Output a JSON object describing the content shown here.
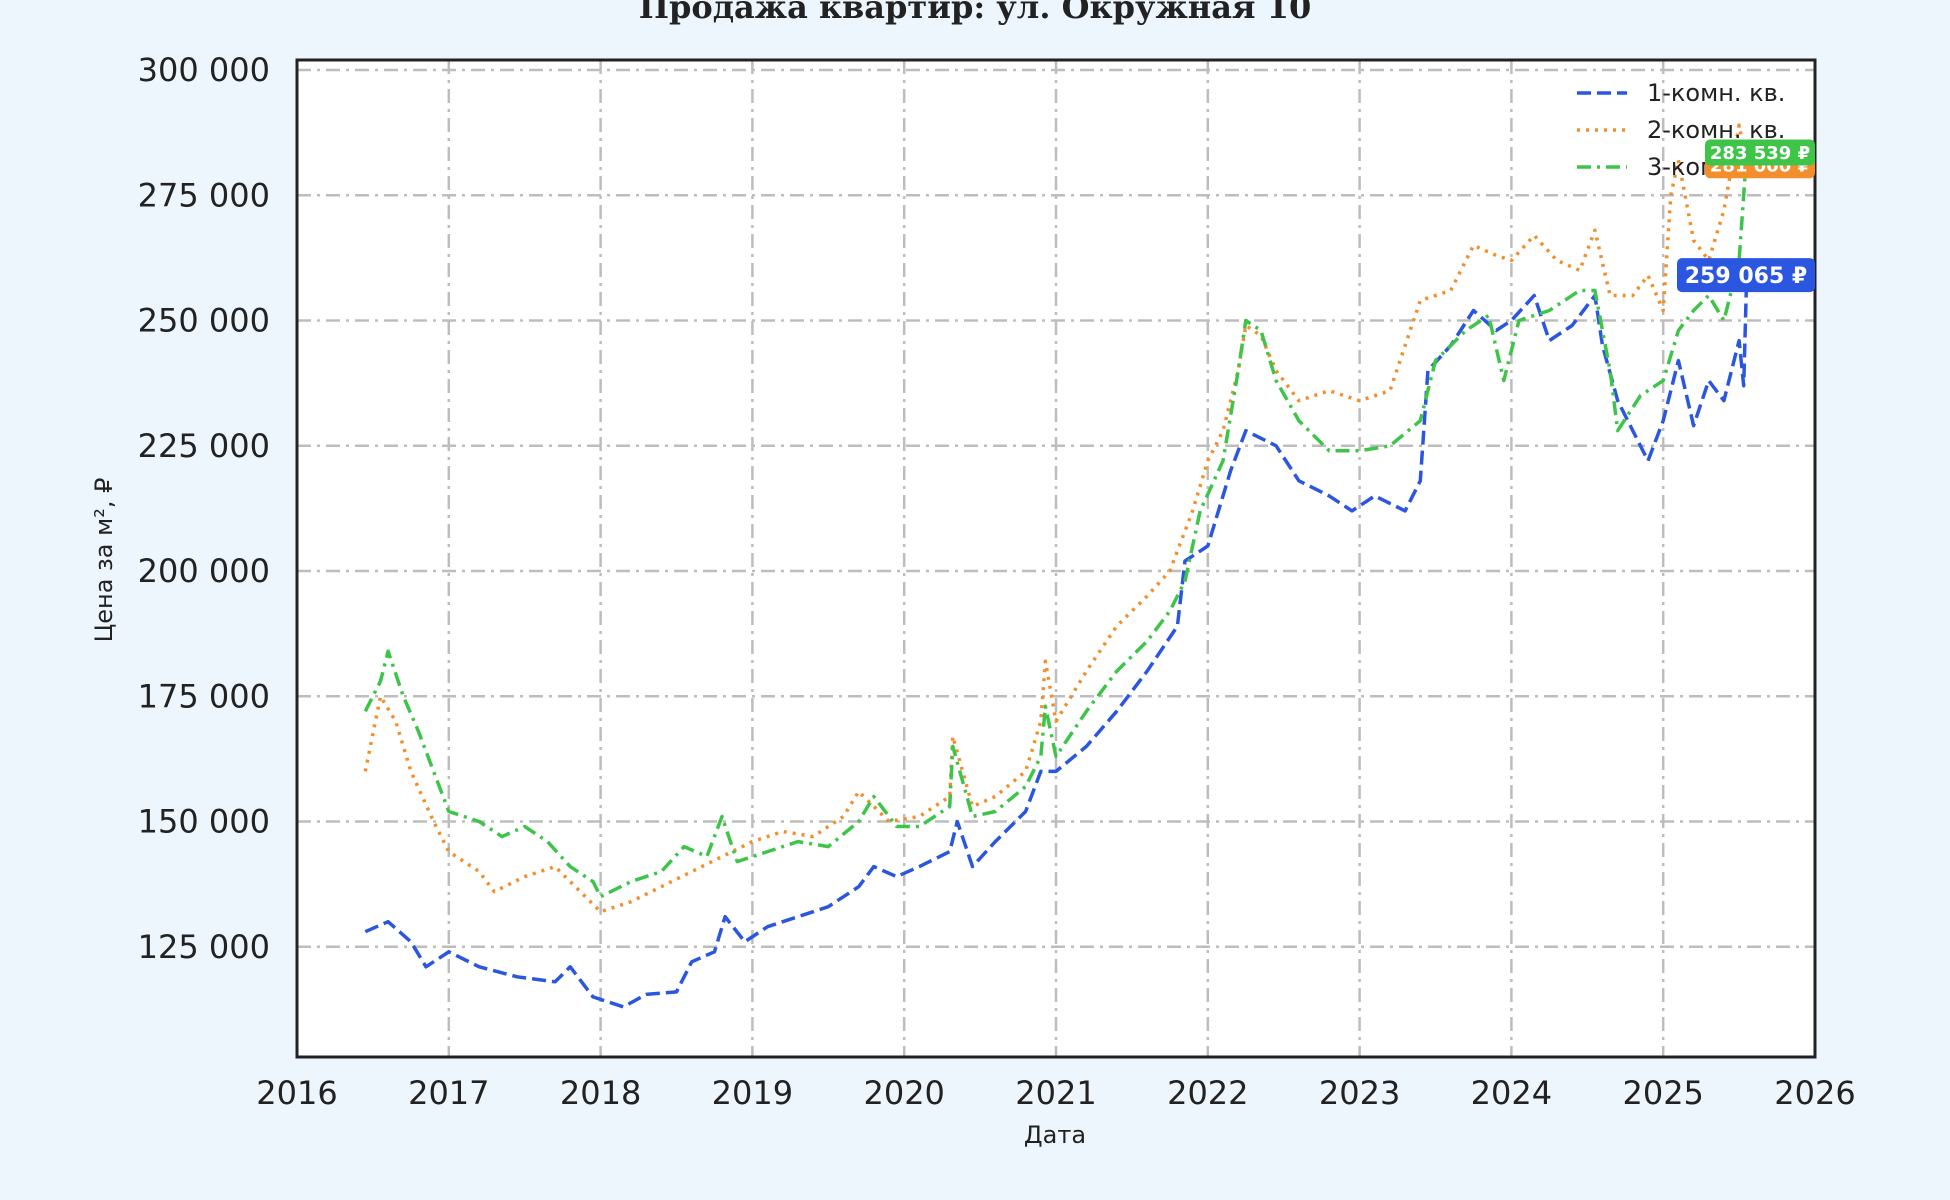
{
  "chart_data": {
    "type": "line",
    "title": "Продажа квартир: ул. Окружная 10",
    "xlabel": "Дата",
    "ylabel": "Цена за м², ₽",
    "xlim": [
      2016.0,
      2026.0
    ],
    "ylim": [
      103000,
      302000
    ],
    "x_ticks": [
      "2016",
      "2017",
      "2018",
      "2019",
      "2020",
      "2021",
      "2022",
      "2023",
      "2024",
      "2025",
      "2026"
    ],
    "y_ticks": [
      "125 000",
      "150 000",
      "175 000",
      "200 000",
      "225 000",
      "250 000",
      "275 000",
      "300 000"
    ],
    "grid": true,
    "legend_position": "top-right",
    "series": [
      {
        "name": "1-комн. кв.",
        "color": "#2a56e0",
        "dash": "dashed",
        "last_label": "259 065 ₽",
        "points": [
          [
            2016.45,
            128000
          ],
          [
            2016.6,
            130000
          ],
          [
            2016.75,
            126000
          ],
          [
            2016.85,
            121000
          ],
          [
            2017.0,
            124000
          ],
          [
            2017.2,
            121000
          ],
          [
            2017.45,
            119000
          ],
          [
            2017.7,
            118000
          ],
          [
            2017.8,
            121000
          ],
          [
            2017.95,
            115000
          ],
          [
            2018.15,
            113000
          ],
          [
            2018.3,
            115500
          ],
          [
            2018.5,
            116000
          ],
          [
            2018.6,
            122000
          ],
          [
            2018.75,
            124000
          ],
          [
            2018.82,
            131000
          ],
          [
            2018.95,
            126000
          ],
          [
            2019.1,
            129000
          ],
          [
            2019.3,
            131000
          ],
          [
            2019.5,
            133000
          ],
          [
            2019.7,
            137000
          ],
          [
            2019.8,
            141000
          ],
          [
            2019.95,
            139000
          ],
          [
            2020.1,
            141000
          ],
          [
            2020.3,
            144000
          ],
          [
            2020.35,
            150000
          ],
          [
            2020.45,
            141000
          ],
          [
            2020.6,
            146000
          ],
          [
            2020.8,
            152000
          ],
          [
            2020.9,
            160000
          ],
          [
            2021.0,
            160000
          ],
          [
            2021.2,
            165000
          ],
          [
            2021.4,
            172000
          ],
          [
            2021.6,
            180000
          ],
          [
            2021.8,
            189000
          ],
          [
            2021.85,
            202000
          ],
          [
            2022.0,
            205000
          ],
          [
            2022.15,
            220000
          ],
          [
            2022.25,
            228000
          ],
          [
            2022.45,
            225000
          ],
          [
            2022.6,
            218000
          ],
          [
            2022.8,
            215000
          ],
          [
            2022.95,
            212000
          ],
          [
            2023.1,
            215000
          ],
          [
            2023.3,
            212000
          ],
          [
            2023.4,
            218000
          ],
          [
            2023.45,
            240000
          ],
          [
            2023.6,
            245000
          ],
          [
            2023.75,
            252000
          ],
          [
            2023.9,
            248000
          ],
          [
            2024.0,
            250000
          ],
          [
            2024.15,
            255000
          ],
          [
            2024.25,
            246000
          ],
          [
            2024.4,
            249000
          ],
          [
            2024.55,
            255000
          ],
          [
            2024.6,
            245000
          ],
          [
            2024.7,
            234000
          ],
          [
            2024.8,
            228000
          ],
          [
            2024.9,
            222000
          ],
          [
            2025.0,
            230000
          ],
          [
            2025.1,
            242000
          ],
          [
            2025.2,
            229000
          ],
          [
            2025.3,
            238000
          ],
          [
            2025.4,
            234000
          ],
          [
            2025.5,
            246000
          ],
          [
            2025.53,
            237000
          ],
          [
            2025.55,
            259065
          ]
        ]
      },
      {
        "name": "2-комн. кв.",
        "color": "#f28e2b",
        "dash": "dotted",
        "last_label": "281 000 ₽",
        "points": [
          [
            2016.45,
            160000
          ],
          [
            2016.55,
            175000
          ],
          [
            2016.65,
            170000
          ],
          [
            2016.75,
            160000
          ],
          [
            2016.9,
            150000
          ],
          [
            2017.0,
            144000
          ],
          [
            2017.2,
            140000
          ],
          [
            2017.3,
            136000
          ],
          [
            2017.5,
            139000
          ],
          [
            2017.7,
            141000
          ],
          [
            2017.9,
            135000
          ],
          [
            2018.0,
            132000
          ],
          [
            2018.2,
            134000
          ],
          [
            2018.4,
            137000
          ],
          [
            2018.6,
            140000
          ],
          [
            2018.8,
            143000
          ],
          [
            2019.0,
            146000
          ],
          [
            2019.2,
            148000
          ],
          [
            2019.4,
            147000
          ],
          [
            2019.6,
            151000
          ],
          [
            2019.7,
            156000
          ],
          [
            2019.9,
            150000
          ],
          [
            2020.1,
            151000
          ],
          [
            2020.3,
            155000
          ],
          [
            2020.32,
            167000
          ],
          [
            2020.45,
            153000
          ],
          [
            2020.6,
            155000
          ],
          [
            2020.8,
            160000
          ],
          [
            2020.9,
            170000
          ],
          [
            2020.93,
            182000
          ],
          [
            2021.0,
            170000
          ],
          [
            2021.2,
            180000
          ],
          [
            2021.4,
            189000
          ],
          [
            2021.6,
            195000
          ],
          [
            2021.75,
            200000
          ],
          [
            2021.9,
            212000
          ],
          [
            2022.0,
            222000
          ],
          [
            2022.1,
            228000
          ],
          [
            2022.2,
            240000
          ],
          [
            2022.25,
            249000
          ],
          [
            2022.35,
            247000
          ],
          [
            2022.45,
            240000
          ],
          [
            2022.6,
            234000
          ],
          [
            2022.8,
            236000
          ],
          [
            2023.0,
            234000
          ],
          [
            2023.2,
            236000
          ],
          [
            2023.3,
            245000
          ],
          [
            2023.4,
            254000
          ],
          [
            2023.6,
            256000
          ],
          [
            2023.75,
            265000
          ],
          [
            2023.9,
            263000
          ],
          [
            2024.0,
            262000
          ],
          [
            2024.15,
            267000
          ],
          [
            2024.3,
            262000
          ],
          [
            2024.45,
            260000
          ],
          [
            2024.55,
            268000
          ],
          [
            2024.65,
            255000
          ],
          [
            2024.8,
            255000
          ],
          [
            2024.9,
            259000
          ],
          [
            2025.0,
            252000
          ],
          [
            2025.05,
            275000
          ],
          [
            2025.1,
            282000
          ],
          [
            2025.2,
            266000
          ],
          [
            2025.3,
            262000
          ],
          [
            2025.4,
            272000
          ],
          [
            2025.5,
            289000
          ],
          [
            2025.55,
            281000
          ]
        ]
      },
      {
        "name": "3-комн. кв.",
        "color": "#3fc44a",
        "dash": "dashdot",
        "last_label": "283 539 ₽",
        "points": [
          [
            2016.45,
            172000
          ],
          [
            2016.55,
            178000
          ],
          [
            2016.6,
            184000
          ],
          [
            2016.7,
            175000
          ],
          [
            2016.8,
            168000
          ],
          [
            2016.9,
            160000
          ],
          [
            2017.0,
            152000
          ],
          [
            2017.2,
            150000
          ],
          [
            2017.35,
            147000
          ],
          [
            2017.5,
            149000
          ],
          [
            2017.65,
            146000
          ],
          [
            2017.8,
            141000
          ],
          [
            2017.95,
            138000
          ],
          [
            2018.0,
            135000
          ],
          [
            2018.2,
            138000
          ],
          [
            2018.4,
            140000
          ],
          [
            2018.55,
            145000
          ],
          [
            2018.7,
            143000
          ],
          [
            2018.8,
            151000
          ],
          [
            2018.9,
            142000
          ],
          [
            2019.1,
            144000
          ],
          [
            2019.3,
            146000
          ],
          [
            2019.5,
            145000
          ],
          [
            2019.7,
            150000
          ],
          [
            2019.8,
            155000
          ],
          [
            2019.95,
            149000
          ],
          [
            2020.1,
            149000
          ],
          [
            2020.3,
            153000
          ],
          [
            2020.32,
            165000
          ],
          [
            2020.45,
            151000
          ],
          [
            2020.6,
            152000
          ],
          [
            2020.8,
            157000
          ],
          [
            2020.9,
            163000
          ],
          [
            2020.93,
            173000
          ],
          [
            2021.0,
            163000
          ],
          [
            2021.2,
            172000
          ],
          [
            2021.4,
            180000
          ],
          [
            2021.6,
            186000
          ],
          [
            2021.75,
            192000
          ],
          [
            2021.85,
            198000
          ],
          [
            2021.95,
            212000
          ],
          [
            2022.1,
            222000
          ],
          [
            2022.2,
            240000
          ],
          [
            2022.25,
            250000
          ],
          [
            2022.35,
            248000
          ],
          [
            2022.45,
            238000
          ],
          [
            2022.6,
            230000
          ],
          [
            2022.8,
            224000
          ],
          [
            2023.0,
            224000
          ],
          [
            2023.2,
            225000
          ],
          [
            2023.4,
            230000
          ],
          [
            2023.5,
            242000
          ],
          [
            2023.7,
            248000
          ],
          [
            2023.85,
            251000
          ],
          [
            2023.95,
            238000
          ],
          [
            2024.05,
            250000
          ],
          [
            2024.25,
            252000
          ],
          [
            2024.45,
            256000
          ],
          [
            2024.55,
            256000
          ],
          [
            2024.65,
            240000
          ],
          [
            2024.7,
            228000
          ],
          [
            2024.85,
            235000
          ],
          [
            2025.0,
            238000
          ],
          [
            2025.1,
            248000
          ],
          [
            2025.2,
            252000
          ],
          [
            2025.3,
            255000
          ],
          [
            2025.4,
            250000
          ],
          [
            2025.5,
            262000
          ],
          [
            2025.55,
            283539
          ]
        ]
      }
    ]
  }
}
